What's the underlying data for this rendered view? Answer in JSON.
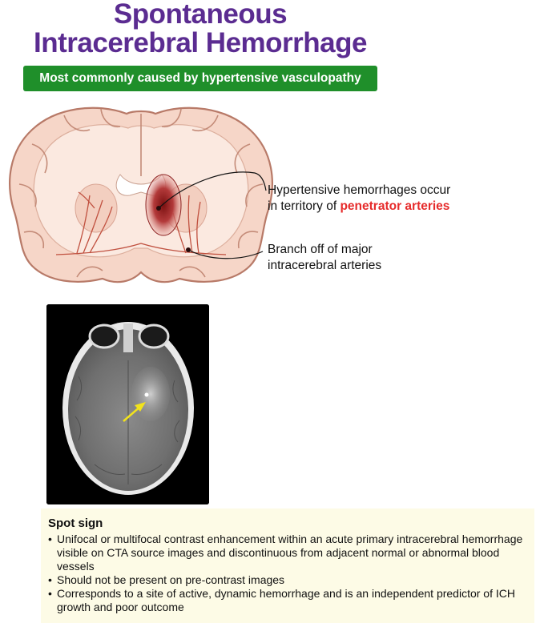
{
  "title": {
    "line1": "Spontaneous",
    "line2": "Intracerebral Hemorrhage"
  },
  "banner": {
    "text": "Most commonly caused by hypertensive vasculopathy",
    "color": "#1f8f2a"
  },
  "callouts": {
    "hemorrhage": {
      "line1": "Hypertensive hemorrhages occur",
      "line2_prefix": "in territory of ",
      "line2_highlight": "penetrator arteries"
    },
    "branch": {
      "line1": "Branch off of major",
      "line2": "intracerebral arteries"
    }
  },
  "spot_sign": {
    "heading": "Spot sign",
    "bullets": [
      "Unifocal or multifocal contrast enhancement within an acute primary intracerebral hemorrhage visible on CTA source images and discontinuous from adjacent normal or abnormal blood vessels",
      "Should not be present on pre-contrast images",
      "Corresponds to a site of active, dynamic hemorrhage and is an independent predictor of ICH growth and poor outcome"
    ]
  },
  "colors": {
    "title": "#5b2c91",
    "highlight": "#e62b2b",
    "note_background": "#fdfbe6"
  }
}
